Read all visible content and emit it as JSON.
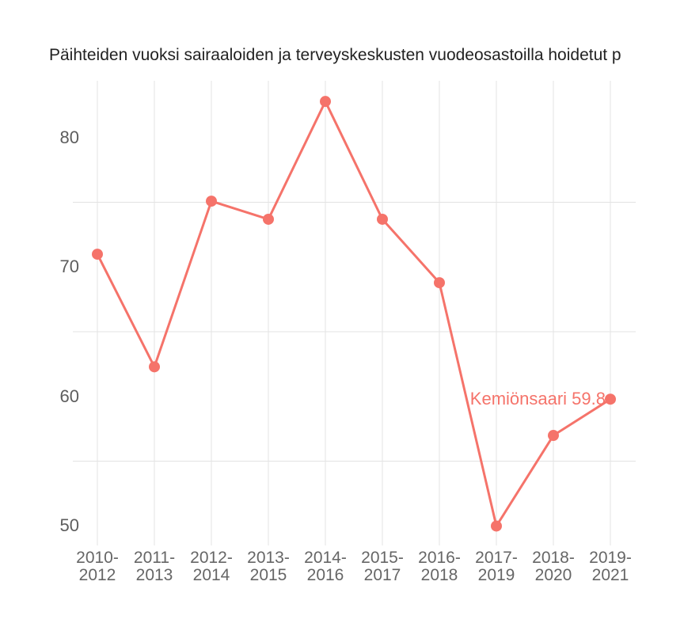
{
  "title": "Päihteiden vuoksi sairaaloiden ja terveyskeskusten vuodeosastoilla hoidetut p",
  "colors": {
    "series": "#F5736A",
    "grid": "#E3E3E3",
    "y_axis_text": "#5d5d5d",
    "x_axis_text": "#666666",
    "title_text": "#222222",
    "background": "#FFFFFF"
  },
  "chart_data": {
    "type": "line",
    "title": "Päihteiden vuoksi sairaaloiden ja terveyskeskusten vuodeosastoilla hoidetut p",
    "categories": [
      "2010-2012",
      "2011-2013",
      "2012-2014",
      "2013-2015",
      "2014-2016",
      "2015-2017",
      "2016-2018",
      "2017-2019",
      "2018-2020",
      "2019-2021"
    ],
    "category_tick_lines": [
      [
        "2010-",
        "2012"
      ],
      [
        "2011-",
        "2013"
      ],
      [
        "2012-",
        "2014"
      ],
      [
        "2013-",
        "2015"
      ],
      [
        "2014-",
        "2016"
      ],
      [
        "2015-",
        "2017"
      ],
      [
        "2016-",
        "2018"
      ],
      [
        "2017-",
        "2019"
      ],
      [
        "2018-",
        "2020"
      ],
      [
        "2019-",
        "2021"
      ]
    ],
    "series": [
      {
        "name": "Kemiönsaari",
        "values": [
          71.0,
          62.3,
          75.1,
          73.7,
          82.8,
          73.7,
          68.8,
          50.0,
          57.0,
          59.8
        ]
      }
    ],
    "yticks": [
      50,
      60,
      70,
      80
    ],
    "gridlines_y": [
      55,
      65,
      75
    ],
    "ylim": [
      48.5,
      84.4
    ],
    "xlabel": "",
    "ylabel": "",
    "legend_position": "none",
    "grid": "on",
    "annotation": {
      "text": "Kemiönsaari 59.8",
      "x_index": 9,
      "y": 59.8
    }
  }
}
